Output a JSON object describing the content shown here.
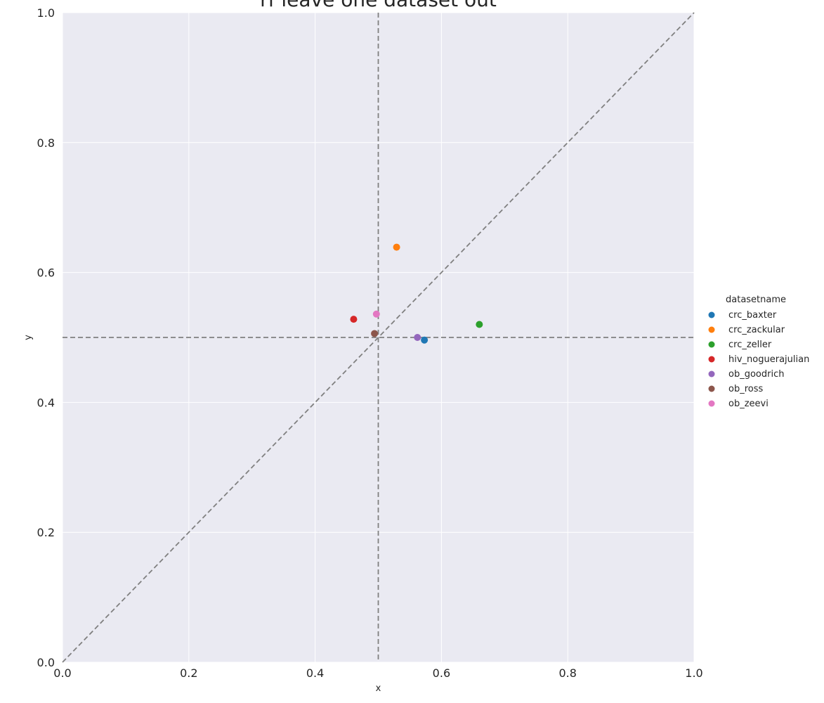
{
  "chart_data": {
    "type": "scatter",
    "title": "rf leave one dataset out",
    "xlabel": "x",
    "ylabel": "y",
    "xlim": [
      0.0,
      1.0
    ],
    "ylim": [
      0.0,
      1.0
    ],
    "xticks": [
      "0.0",
      "0.2",
      "0.4",
      "0.6",
      "0.8",
      "1.0"
    ],
    "yticks": [
      "0.0",
      "0.2",
      "0.4",
      "0.6",
      "0.8",
      "1.0"
    ],
    "grid": true,
    "reference_lines": {
      "vertical_x": 0.5,
      "horizontal_y": 0.5,
      "diagonal": true
    },
    "legend": {
      "title": "datasetname",
      "placement": "right"
    },
    "series": [
      {
        "name": "crc_baxter",
        "color": "#1f77b4",
        "points": [
          {
            "x": 0.573,
            "y": 0.496
          }
        ]
      },
      {
        "name": "crc_zackular",
        "color": "#ff7f0e",
        "points": [
          {
            "x": 0.529,
            "y": 0.639
          }
        ]
      },
      {
        "name": "crc_zeller",
        "color": "#2ca02c",
        "points": [
          {
            "x": 0.66,
            "y": 0.52
          }
        ]
      },
      {
        "name": "hiv_noguerajulian",
        "color": "#d62728",
        "points": [
          {
            "x": 0.461,
            "y": 0.528
          }
        ]
      },
      {
        "name": "ob_goodrich",
        "color": "#9467bd",
        "points": [
          {
            "x": 0.562,
            "y": 0.5
          }
        ]
      },
      {
        "name": "ob_ross",
        "color": "#8c564b",
        "points": [
          {
            "x": 0.494,
            "y": 0.506
          }
        ]
      },
      {
        "name": "ob_zeevi",
        "color": "#e377c2",
        "points": [
          {
            "x": 0.497,
            "y": 0.536
          }
        ]
      }
    ]
  }
}
